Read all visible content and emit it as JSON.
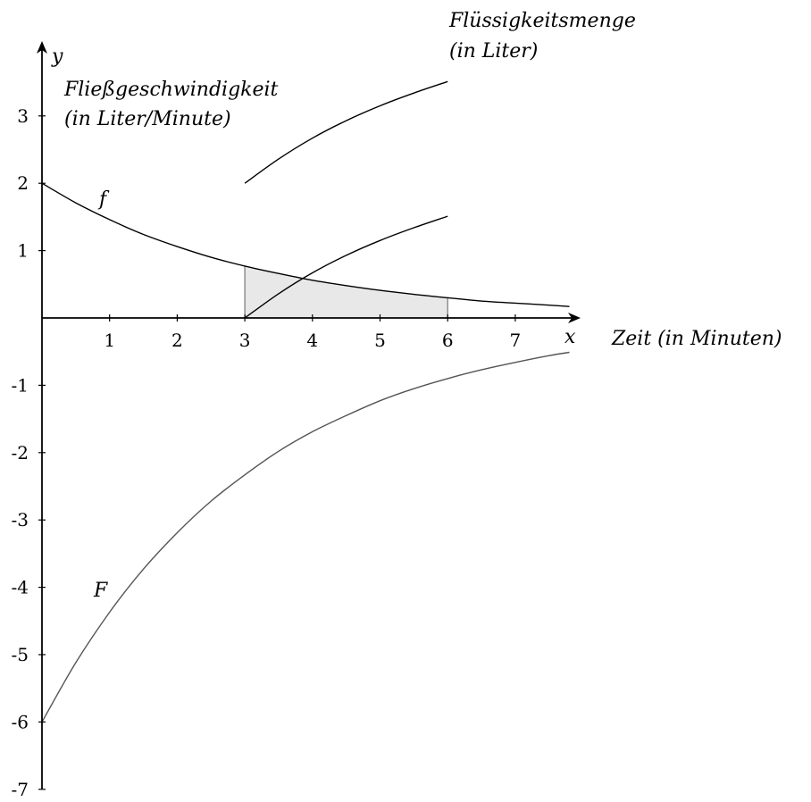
{
  "chart_data": {
    "type": "line",
    "xlabel": "x",
    "ylabel": "y",
    "xlim": [
      0,
      7.8
    ],
    "ylim": [
      -7,
      3.9
    ],
    "x_ticks": [
      1,
      2,
      3,
      4,
      5,
      6,
      7
    ],
    "y_ticks": [
      3,
      2,
      1,
      -1,
      -2,
      -3,
      -4,
      -5,
      -6,
      -7
    ],
    "grid": false,
    "legend": "none",
    "annotations": {
      "x_axis_caption": "Zeit (in Minuten)",
      "rate_caption_line1": "Fließgeschwindigkeit",
      "rate_caption_line2": "(in Liter/Minute)",
      "amount_caption_line1": "Flüssigkeitsmenge",
      "amount_caption_line2": "(in Liter)"
    },
    "series": [
      {
        "name": "f",
        "x": [
          0,
          0.5,
          1,
          1.5,
          2,
          2.5,
          3,
          3.5,
          4,
          4.5,
          5,
          5.5,
          6,
          6.5,
          7,
          7.5,
          7.8
        ],
        "y": [
          2.0,
          1.71,
          1.46,
          1.24,
          1.06,
          0.9,
          0.77,
          0.66,
          0.56,
          0.48,
          0.41,
          0.35,
          0.3,
          0.25,
          0.22,
          0.19,
          0.17
        ]
      },
      {
        "name": "F",
        "x": [
          0,
          0.5,
          1,
          1.5,
          2,
          2.5,
          3,
          3.5,
          4,
          4.5,
          5,
          5.5,
          6,
          6.5,
          7,
          7.5,
          7.8
        ],
        "y": [
          -6.0,
          -5.12,
          -4.37,
          -3.73,
          -3.19,
          -2.72,
          -2.33,
          -1.98,
          -1.69,
          -1.45,
          -1.23,
          -1.05,
          -0.9,
          -0.77,
          -0.66,
          -0.56,
          -0.51
        ]
      },
      {
        "x": [
          3,
          3.5,
          4,
          4.5,
          5,
          5.5,
          6
        ],
        "y": [
          0.0,
          0.36,
          0.67,
          0.93,
          1.15,
          1.34,
          1.51
        ]
      },
      {
        "x": [
          3,
          3.5,
          4,
          4.5,
          5,
          5.5,
          6
        ],
        "y": [
          2.0,
          2.36,
          2.67,
          2.93,
          3.15,
          3.34,
          3.51
        ]
      }
    ],
    "shaded_region": {
      "under": "f",
      "from": 3,
      "to": 6,
      "fill": "#e8e8e8"
    },
    "colors": {
      "axis": "#000000",
      "curve": "#000000",
      "curve_F": "#555555",
      "shade": "#e8e8e8"
    }
  }
}
